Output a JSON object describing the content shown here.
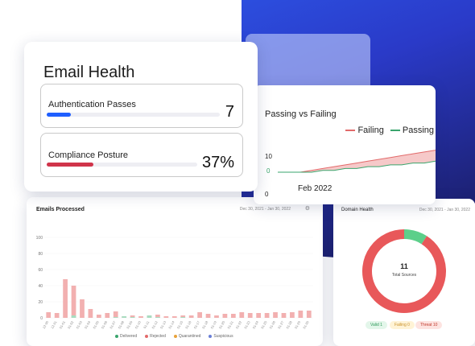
{
  "email_health": {
    "title": "Email Health",
    "auth_passes": {
      "label": "Authentication Passes",
      "value": "7",
      "progress": 0.14,
      "color": "#1f5fff"
    },
    "compliance": {
      "label": "Compliance Posture",
      "value": "37%",
      "progress": 0.31,
      "color": "#d0344a"
    }
  },
  "passing_failing": {
    "title": "Passing vs Failing",
    "legend": [
      {
        "name": "Failing",
        "color": "#e26a6a"
      },
      {
        "name": "Passing",
        "color": "#3aa56d"
      }
    ],
    "x_label": "Feb 2022",
    "y_ticks": [
      "10",
      "0"
    ],
    "bottom_tick": "0"
  },
  "emails_processed": {
    "title": "Emails Processed",
    "date_range": "Dec 30, 2021 - Jan 30, 2022",
    "settings_icon": "gear-icon",
    "legend": [
      {
        "name": "Delivered",
        "color": "#3aa56d"
      },
      {
        "name": "Rejected",
        "color": "#e26a6a"
      },
      {
        "name": "Quarantined",
        "color": "#e8a23a"
      },
      {
        "name": "Suspicious",
        "color": "#6a7fd6"
      }
    ]
  },
  "domain_health": {
    "title": "Domain Health",
    "date_range": "Dec 30, 2021 - Jan 30, 2022",
    "count": "11",
    "count_label": "Total Sources",
    "pills": {
      "valid": "Valid  1",
      "failing": "Failing  0",
      "threat": "Threat  10"
    }
  },
  "chart_data": [
    {
      "type": "area",
      "title": "Passing vs Failing",
      "xlabel": "Feb 2022",
      "ylabel": "",
      "ylim": [
        0,
        14
      ],
      "series": [
        {
          "name": "Failing",
          "values": [
            0,
            0,
            0,
            1,
            2,
            3,
            4,
            5,
            6,
            7,
            8,
            9,
            10,
            11,
            12
          ]
        },
        {
          "name": "Passing",
          "values": [
            0,
            0,
            0,
            0,
            1,
            1,
            2,
            2,
            3,
            3,
            4,
            4,
            5,
            5,
            6
          ]
        }
      ],
      "grid": false,
      "legend": "top-right"
    },
    {
      "type": "bar",
      "title": "Emails Processed",
      "ylim": [
        0,
        100
      ],
      "y_ticks": [
        "0",
        "20",
        "40",
        "60",
        "80",
        "100"
      ],
      "categories": [
        "12-30",
        "12-31",
        "01-01",
        "01-02",
        "01-03",
        "01-04",
        "01-05",
        "01-06",
        "01-07",
        "01-08",
        "01-09",
        "01-10",
        "01-11",
        "01-12",
        "01-13",
        "01-14",
        "01-15",
        "01-16",
        "01-17",
        "01-18",
        "01-19",
        "01-20",
        "01-21",
        "01-22",
        "01-23",
        "01-24",
        "01-25",
        "01-26",
        "01-27",
        "01-28",
        "01-29",
        "01-30"
      ],
      "series": [
        {
          "name": "Rejected",
          "values": [
            7,
            6,
            48,
            40,
            23,
            11,
            4,
            6,
            8,
            2,
            3,
            2,
            3,
            4,
            2,
            2,
            3,
            3,
            7,
            5,
            3,
            5,
            5,
            7,
            6,
            6,
            6,
            7,
            6,
            7,
            9,
            9
          ]
        },
        {
          "name": "Delivered",
          "values": [
            0,
            0,
            0,
            3,
            0,
            0,
            0,
            0,
            1,
            2,
            1,
            0,
            3,
            1,
            0,
            0,
            1,
            0,
            0,
            0,
            0,
            0,
            0,
            0,
            0,
            0,
            0,
            0,
            0,
            0,
            0,
            0
          ]
        }
      ],
      "legend": "bottom"
    },
    {
      "type": "pie",
      "title": "Domain Health",
      "categories": [
        "Valid",
        "Failing",
        "Threat"
      ],
      "values": [
        1,
        0,
        10
      ],
      "colors": [
        "#5ccf8a",
        "#f2c14e",
        "#e8585a"
      ]
    }
  ]
}
